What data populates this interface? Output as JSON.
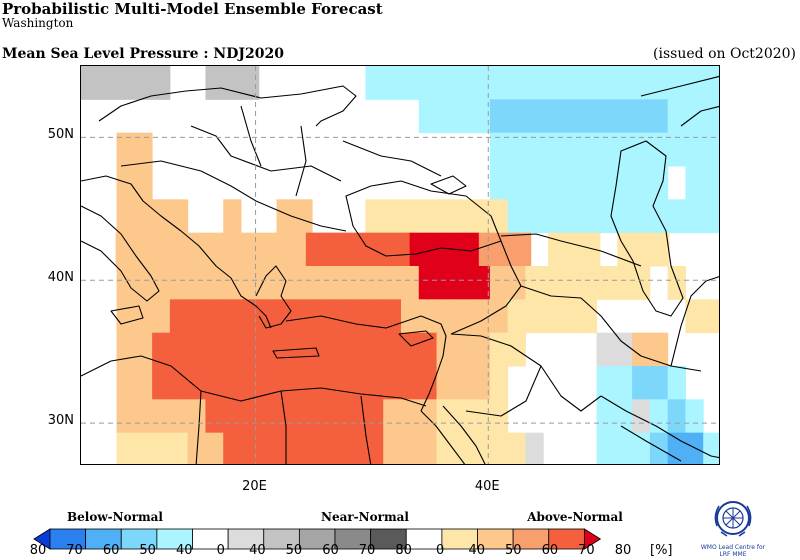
{
  "header": {
    "title": "Probabilistic Multi-Model Ensemble Forecast",
    "subtitle": "Washington",
    "variable": "Mean Sea Level Pressure : NDJ2020",
    "issued": "(issued on Oct2020)"
  },
  "map": {
    "lon_range": [
      5,
      60
    ],
    "lat_range": [
      27,
      55
    ],
    "lat_ticks": [
      {
        "label": "50N",
        "value": 50
      },
      {
        "label": "40N",
        "value": 40
      },
      {
        "label": "30N",
        "value": 30
      }
    ],
    "lon_ticks": [
      {
        "label": "20E",
        "value": 20
      },
      {
        "label": "40E",
        "value": 40
      }
    ],
    "grid_cell_deg": 2.5,
    "colors": {
      "B40": "#aaf5ff",
      "B50": "#7cd7fa",
      "B60": "#50b0f5",
      "B70": "#2a80ee",
      "B80": "#0a3dd8",
      "N": "#ffffff",
      "N40": "#dcdcdc",
      "N50": "#c3c3c3",
      "N60": "#a5a5a5",
      "A40": "#fde6a8",
      "A50": "#fcc88c",
      "A60": "#f99f6e",
      "A70": "#f4603e",
      "A80": "#e0001a"
    },
    "rows": [
      {
        "lat": 53.75,
        "cells": "AAAAA..AAA..NNNNBBBBBBBBBBBBBBBBBBBB"
      },
      {
        "lat": 51.25,
        "cells": "..N.NNNNNNNNNNNNNNNBBBBCCCCCCCCCCBBB"
      },
      {
        "lat": 48.75,
        "cells": "..HHN..NNNNNNNNNNNNN...BBBBBBBBBBBBB"
      },
      {
        "lat": 46.25,
        "cells": "..HH...NNNNNN...NNN....BBBBBBBBBB.BB"
      },
      {
        "lat": 43.75,
        "cells": "..HHHH..H..HH.N.FFFFFFFFBBBBBBBBBBBB"
      },
      {
        "lat": 41.25,
        "cells": "..HHHHHHHHHHHIIIIIIMMMMSSS.FFF.FFF..."
      },
      {
        "lat": 38.75,
        "cells": "..HHHHHHHHHHHHHHHHHMMMMHHFFFFFFF.F.."
      },
      {
        "lat": 36.25,
        "cells": "..HHHIIIIIIIIIIIIIHHHHHHFFFFF.....FF"
      },
      {
        "lat": 33.75,
        "cells": "..HHIIIIIIIIIIIIIIIIHHHFF....GGHH..."
      },
      {
        "lat": 31.25,
        "cells": "..HHIIIIIIIIIIIIIIIIHHHF.....BBCCB.."
      },
      {
        "lat": 28.75,
        "cells": "..HHHHHIIIIIIIIIIHHHFFFF.....BBGBCB."
      },
      {
        "lat": 26.25,
        "cells": "..FFFFHHIIIIIIIIIHHHFFFFFG...BBBCDDB"
      }
    ]
  },
  "legend": {
    "categories": [
      {
        "label": "Below-Normal"
      },
      {
        "label": "Near-Normal"
      },
      {
        "label": "Above-Normal"
      }
    ],
    "ticks": [
      "80",
      "70",
      "60",
      "50",
      "40",
      "0",
      "40",
      "50",
      "60",
      "70",
      "80",
      "0",
      "40",
      "50",
      "60",
      "70",
      "80"
    ],
    "unit": "[%]",
    "bins": [
      {
        "color": "#0a3dd8"
      },
      {
        "color": "#2a80ee"
      },
      {
        "color": "#50b0f5"
      },
      {
        "color": "#7cd7fa"
      },
      {
        "color": "#aaf5ff"
      },
      {
        "color": "#ffffff"
      },
      {
        "color": "#dcdcdc"
      },
      {
        "color": "#c3c3c3"
      },
      {
        "color": "#a5a5a5"
      },
      {
        "color": "#8a8a8a"
      },
      {
        "color": "#5a5a5a"
      },
      {
        "color": "#ffffff"
      },
      {
        "color": "#fde6a8"
      },
      {
        "color": "#fcc88c"
      },
      {
        "color": "#f99f6e"
      },
      {
        "color": "#f4603e"
      },
      {
        "color": "#e0001a"
      }
    ]
  },
  "logo": {
    "caption_line1": "WMO Lead Centre for",
    "caption_line2": "LRF MME"
  }
}
